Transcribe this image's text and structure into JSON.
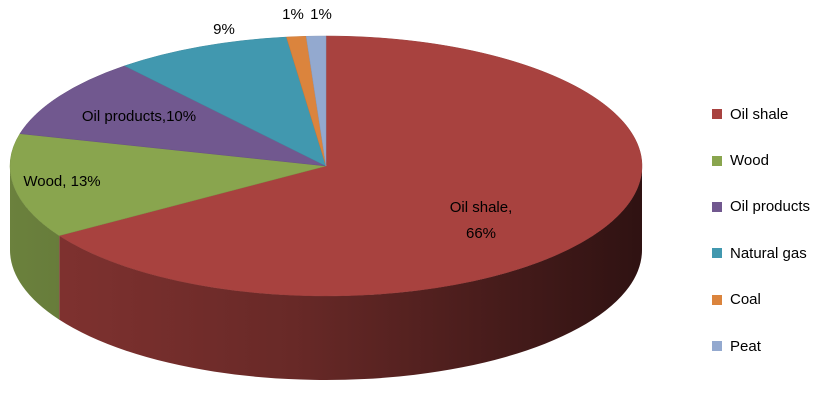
{
  "chart_data": {
    "type": "pie",
    "style": "3d",
    "slices": [
      {
        "name": "Oil shale",
        "value": 66,
        "color": "#a8423f",
        "label_lines": [
          "Oil shale,",
          "66%"
        ]
      },
      {
        "name": "Wood",
        "value": 13,
        "color": "#89a54e",
        "label_lines": [
          "Wood, 13%"
        ]
      },
      {
        "name": "Oil products",
        "value": 10,
        "color": "#71588f",
        "label_lines": [
          "Oil products,10%"
        ]
      },
      {
        "name": "Natural gas",
        "value": 9,
        "color": "#4198af",
        "label_lines": [
          "9%"
        ]
      },
      {
        "name": "Coal",
        "value": 1,
        "color": "#db843d",
        "label_lines": [
          "1%"
        ]
      },
      {
        "name": "Peat",
        "value": 1,
        "color": "#93a9cf",
        "label_lines": [
          "1%"
        ]
      }
    ],
    "legend_position": "right"
  }
}
